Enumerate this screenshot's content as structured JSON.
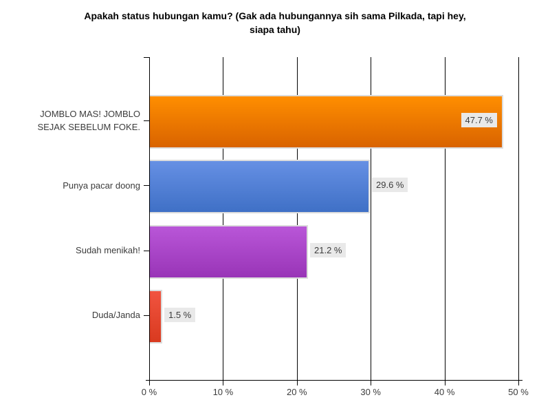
{
  "chart_data": {
    "type": "bar",
    "orientation": "horizontal",
    "title": "Apakah status hubungan kamu? (Gak ada hubungannya sih sama Pilkada, tapi hey, siapa tahu)",
    "title_lines": [
      "Apakah status hubungan kamu? (Gak ada hubungannya sih sama Pilkada, tapi hey,",
      "siapa tahu)"
    ],
    "categories": [
      "JOMBLO MAS! JOMBLO SEJAK SEBELUM FOKE.",
      "Punya pacar doong",
      "Sudah menikah!",
      "Duda/Janda"
    ],
    "category_lines": [
      [
        "JOMBLO MAS! JOMBLO",
        "SEJAK SEBELUM FOKE."
      ],
      [
        "Punya pacar doong"
      ],
      [
        "Sudah menikah!"
      ],
      [
        "Duda/Janda"
      ]
    ],
    "values": [
      47.7,
      29.6,
      21.2,
      1.5
    ],
    "value_labels": [
      "47.7 %",
      "29.6 %",
      "21.2 %",
      "1.5 %"
    ],
    "x_ticks": [
      "0 %",
      "10 %",
      "20 %",
      "30 %",
      "40 %",
      "50 %"
    ],
    "x_tick_values": [
      0,
      10,
      20,
      30,
      40,
      50
    ],
    "xlim": [
      0,
      50
    ],
    "xlabel": "",
    "ylabel": "",
    "grid": "vertical-only",
    "legend": "none",
    "bar_gradients": [
      {
        "top": "#FF8E00",
        "bottom": "#D96300"
      },
      {
        "top": "#6690E4",
        "bottom": "#3F70C6"
      },
      {
        "top": "#B956D8",
        "bottom": "#9935B7"
      },
      {
        "top": "#F15440",
        "bottom": "#D93A1F"
      }
    ],
    "colors": {
      "background": "#FFFFFF",
      "bar_border": "#DCDCDC",
      "axis": "#000000",
      "gridline": "#000000",
      "value_box_bg": "#E9E9E9",
      "label_text": "#3B3B3B",
      "title_text": "#000000"
    }
  }
}
